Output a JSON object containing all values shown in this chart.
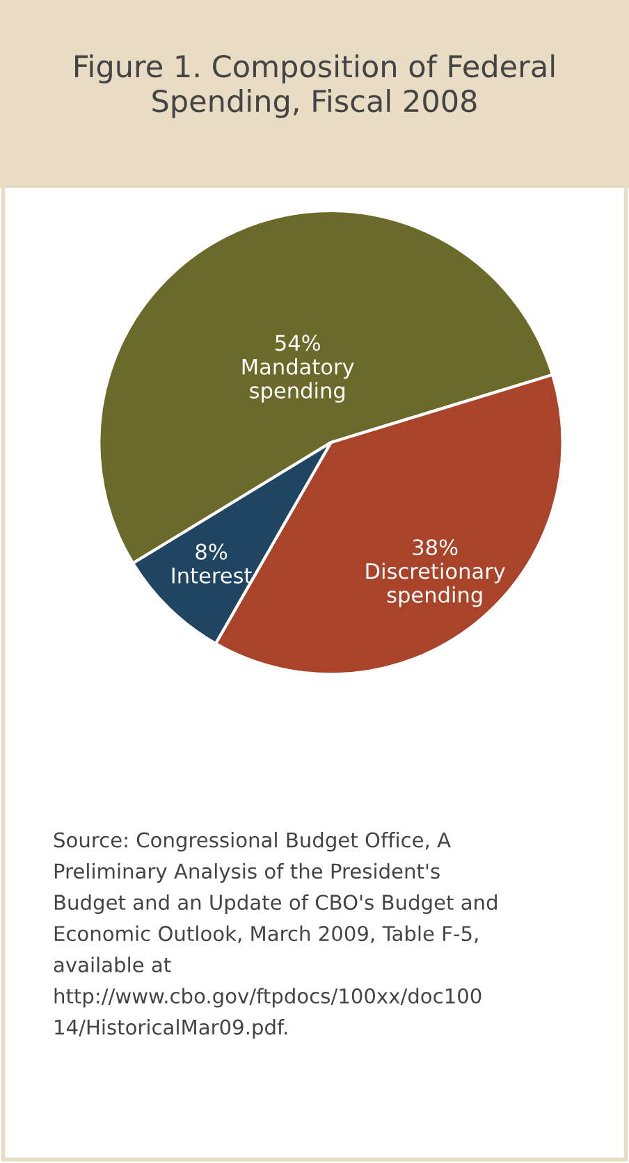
{
  "chart_data": {
    "type": "pie",
    "title": "Figure 1. Composition of Federal\nSpending, Fiscal 2008",
    "categories": [
      "Mandatory\nspending",
      "Discretionary\nspending",
      "Interest"
    ],
    "values": [
      54,
      38,
      8
    ],
    "value_labels": [
      "54%",
      "38%",
      "8%"
    ],
    "colors": [
      "#6b6a2b",
      "#a9442a",
      "#1f4562"
    ],
    "annotations": [
      "Source: Congressional Budget Office, A\nPreliminary Analysis of the President's\nBudget and an Update of CBO's Budget and\nEconomic Outlook, March 2009, Table F-5,\navailable at\nhttp://www.cbo.gov/ftpdocs/100xx/doc100\n14/HistoricalMar09.pdf."
    ]
  }
}
